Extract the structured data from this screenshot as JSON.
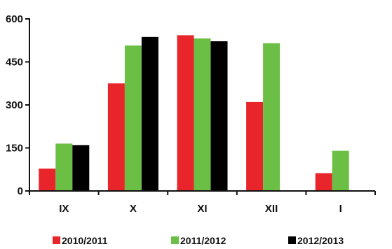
{
  "chart_data": {
    "type": "bar",
    "title": "",
    "xlabel": "",
    "ylabel": "",
    "categories": [
      "IX",
      "X",
      "XI",
      "XII",
      "I"
    ],
    "ylim": [
      0,
      600
    ],
    "yticks": [
      0,
      150,
      300,
      450,
      600
    ],
    "grid": false,
    "legend_position": "bottom",
    "series": [
      {
        "name": "2010/2011",
        "color": "#e8252b",
        "values": [
          78,
          375,
          543,
          310,
          62
        ]
      },
      {
        "name": "2011/2012",
        "color": "#6cbf45",
        "values": [
          165,
          507,
          532,
          515,
          140
        ]
      },
      {
        "name": "2012/2013",
        "color": "#000000",
        "values": [
          160,
          537,
          522,
          null,
          null
        ]
      }
    ]
  }
}
